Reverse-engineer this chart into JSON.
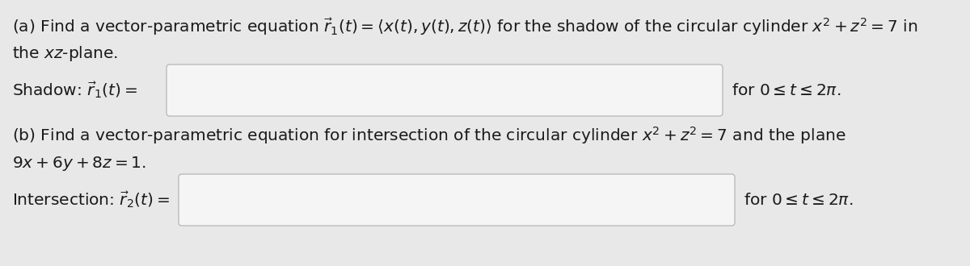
{
  "background_color": "#e8e8e8",
  "text_color": "#1a1a1a",
  "box_color": "#f5f5f5",
  "box_edge_color": "#bbbbbb",
  "part_a_line1": "(a) Find a vector-parametric equation $\\vec{r}_1(t) = \\langle x(t), y(t), z(t)\\rangle$ for the shadow of the circular cylinder $x^2 + z^2 = 7$ in",
  "part_a_line2": "the $xz$-plane.",
  "shadow_label": "Shadow: $\\vec{r}_1(t) =$",
  "shadow_for": "for $0 \\leq t \\leq 2\\pi$.",
  "part_b_line1": "(b) Find a vector-parametric equation for intersection of the circular cylinder $x^2 + z^2 = 7$ and the plane",
  "part_b_line2": "$9x + 6y + 8z = 1$.",
  "intersection_label": "Intersection: $\\vec{r}_2(t) =$",
  "intersection_for": "for $0 \\leq t \\leq 2\\pi$.",
  "fontsize": 14.5
}
